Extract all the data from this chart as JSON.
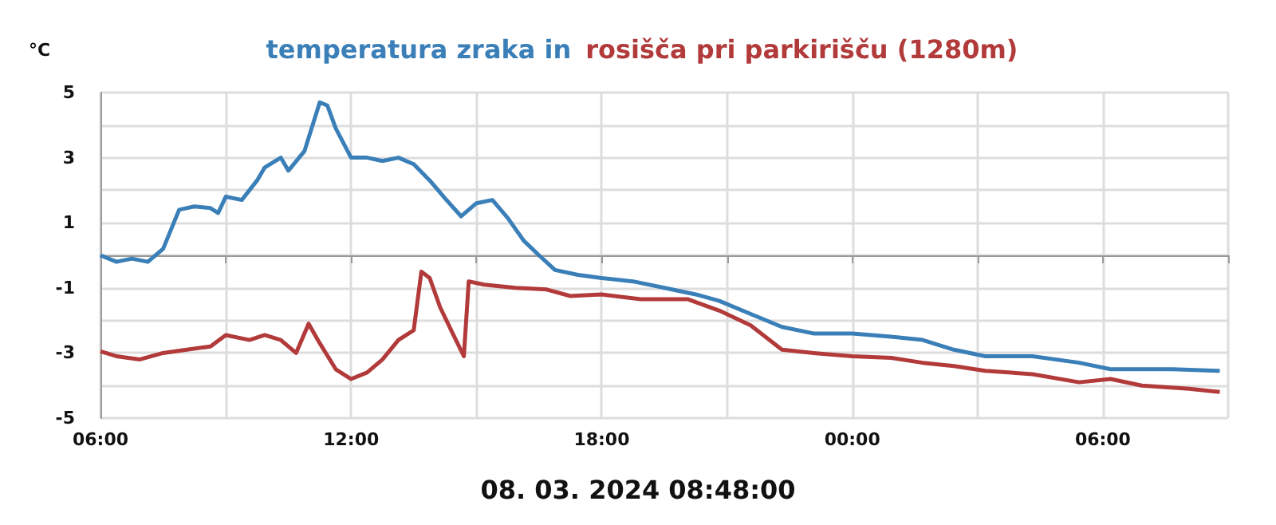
{
  "chart_data": {
    "type": "line",
    "ylabel": "°C",
    "annotations": [
      "08. 03. 2024 08:48:00"
    ],
    "legend": "top",
    "grid": true,
    "marker": "none",
    "line_style": "solid",
    "xlim": [
      "2024-03-07T06:00",
      "2024-03-08T09:00"
    ],
    "xticks": [
      {
        "value": "2024-03-07T06:00",
        "label": "06:00"
      },
      {
        "value": "2024-03-07T09:00",
        "label": null
      },
      {
        "value": "2024-03-07T12:00",
        "label": "12:00"
      },
      {
        "value": "2024-03-07T15:00",
        "label": null
      },
      {
        "value": "2024-03-07T18:00",
        "label": "18:00"
      },
      {
        "value": "2024-03-07T21:00",
        "label": null
      },
      {
        "value": "2024-03-08T00:00",
        "label": "00:00"
      },
      {
        "value": "2024-03-08T03:00",
        "label": null
      },
      {
        "value": "2024-03-08T06:00",
        "label": "06:00"
      },
      {
        "value": "2024-03-08T09:00",
        "label": null
      }
    ],
    "ylim": [
      -5,
      5
    ],
    "yticks": [
      -5,
      {
        "value": -4,
        "label": null
      },
      -3,
      {
        "value": -2,
        "label": null
      },
      -1,
      {
        "value": 0,
        "label": null
      },
      1,
      {
        "value": 2,
        "label": null
      },
      3,
      {
        "value": 4,
        "label": null
      },
      5
    ],
    "series": [
      {
        "name": "temperatura zraka in",
        "color": "#3a7fb8",
        "x": [
          "2024-03-07T06:00",
          "2024-03-07T06:23",
          "2024-03-07T06:45",
          "2024-03-07T07:08",
          "2024-03-07T07:30",
          "2024-03-07T07:53",
          "2024-03-07T08:15",
          "2024-03-07T08:38",
          "2024-03-07T08:49",
          "2024-03-07T09:00",
          "2024-03-07T09:23",
          "2024-03-07T09:34",
          "2024-03-07T09:45",
          "2024-03-07T09:56",
          "2024-03-07T10:19",
          "2024-03-07T10:30",
          "2024-03-07T10:53",
          "2024-03-07T11:15",
          "2024-03-07T11:26",
          "2024-03-07T11:38",
          "2024-03-07T12:00",
          "2024-03-07T12:23",
          "2024-03-07T12:45",
          "2024-03-07T13:08",
          "2024-03-07T13:30",
          "2024-03-07T13:53",
          "2024-03-07T14:15",
          "2024-03-07T14:38",
          "2024-03-07T15:00",
          "2024-03-07T15:23",
          "2024-03-07T15:45",
          "2024-03-07T16:08",
          "2024-03-07T16:30",
          "2024-03-07T16:53",
          "2024-03-07T17:26",
          "2024-03-07T18:00",
          "2024-03-07T18:45",
          "2024-03-07T19:30",
          "2024-03-07T20:15",
          "2024-03-07T20:49",
          "2024-03-07T21:34",
          "2024-03-07T22:19",
          "2024-03-07T23:04",
          "2024-03-08T00:00",
          "2024-03-08T00:56",
          "2024-03-08T01:41",
          "2024-03-08T02:26",
          "2024-03-08T03:11",
          "2024-03-08T04:19",
          "2024-03-08T05:26",
          "2024-03-08T06:11",
          "2024-03-08T06:56",
          "2024-03-08T07:41",
          "2024-03-08T08:48"
        ],
        "values": [
          0,
          -0.2,
          -0.1,
          -0.2,
          0.2,
          1.4,
          1.5,
          1.45,
          1.3,
          1.8,
          1.7,
          2.0,
          2.3,
          2.7,
          3.0,
          2.6,
          3.2,
          4.7,
          4.6,
          3.9,
          3.0,
          3.0,
          2.9,
          3.0,
          2.8,
          2.3,
          1.75,
          1.2,
          1.6,
          1.7,
          1.15,
          0.45,
          0,
          -0.45,
          -0.6,
          -0.7,
          -0.8,
          -1.0,
          -1.2,
          -1.4,
          -1.8,
          -2.2,
          -2.4,
          -2.4,
          -2.5,
          -2.6,
          -2.9,
          -3.1,
          -3.1,
          -3.3,
          -3.5,
          -3.5,
          -3.5,
          -3.55
        ]
      },
      {
        "name": "rosišča pri parkirišču (1280m)",
        "color": "#b23a3a",
        "x": [
          "2024-03-07T06:00",
          "2024-03-07T06:23",
          "2024-03-07T06:56",
          "2024-03-07T07:30",
          "2024-03-07T08:04",
          "2024-03-07T08:38",
          "2024-03-07T09:00",
          "2024-03-07T09:34",
          "2024-03-07T09:56",
          "2024-03-07T10:19",
          "2024-03-07T10:41",
          "2024-03-07T10:59",
          "2024-03-07T11:15",
          "2024-03-07T11:38",
          "2024-03-07T12:00",
          "2024-03-07T12:23",
          "2024-03-07T12:45",
          "2024-03-07T13:08",
          "2024-03-07T13:30",
          "2024-03-07T13:41",
          "2024-03-07T13:53",
          "2024-03-07T14:08",
          "2024-03-07T14:26",
          "2024-03-07T14:42",
          "2024-03-07T14:49",
          "2024-03-07T15:11",
          "2024-03-07T15:56",
          "2024-03-07T16:41",
          "2024-03-07T17:15",
          "2024-03-07T18:00",
          "2024-03-07T18:56",
          "2024-03-07T20:04",
          "2024-03-07T20:49",
          "2024-03-07T21:34",
          "2024-03-07T22:19",
          "2024-03-07T23:04",
          "2024-03-08T00:00",
          "2024-03-08T00:56",
          "2024-03-08T01:41",
          "2024-03-08T02:26",
          "2024-03-08T03:11",
          "2024-03-08T04:19",
          "2024-03-08T05:26",
          "2024-03-08T06:11",
          "2024-03-08T06:56",
          "2024-03-08T08:04",
          "2024-03-08T08:48"
        ],
        "values": [
          -2.95,
          -3.1,
          -3.2,
          -3.0,
          -2.9,
          -2.8,
          -2.45,
          -2.6,
          -2.45,
          -2.6,
          -3.0,
          -2.1,
          -2.7,
          -3.5,
          -3.8,
          -3.6,
          -3.2,
          -2.6,
          -2.3,
          -0.5,
          -0.7,
          -1.6,
          -2.4,
          -3.1,
          -0.8,
          -0.9,
          -1.0,
          -1.05,
          -1.25,
          -1.2,
          -1.35,
          -1.35,
          -1.7,
          -2.15,
          -2.9,
          -3.0,
          -3.1,
          -3.15,
          -3.3,
          -3.4,
          -3.55,
          -3.65,
          -3.9,
          -3.8,
          -4.0,
          -4.1,
          -4.2
        ]
      }
    ]
  }
}
